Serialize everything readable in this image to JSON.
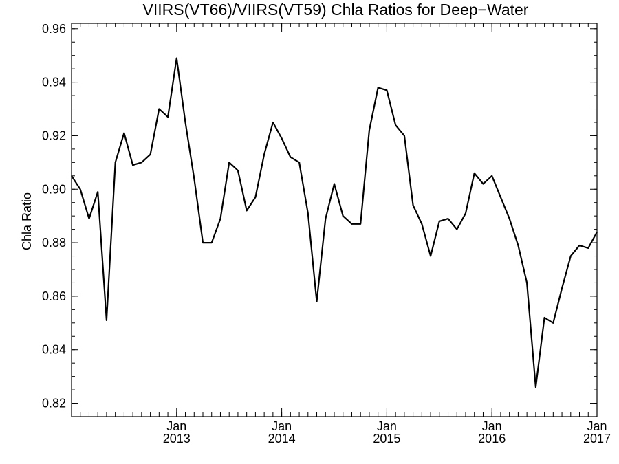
{
  "chart_data": {
    "type": "line",
    "title": "VIIRS(VT66)/VIIRS(VT59)  Chla Ratios for Deep−Water",
    "xlabel": "",
    "ylabel": "Chla Ratio",
    "xlim": [
      "2012-01",
      "2017-01"
    ],
    "ylim": [
      0.815,
      0.962
    ],
    "y_ticks": [
      0.82,
      0.84,
      0.86,
      0.88,
      0.9,
      0.92,
      0.94,
      0.96
    ],
    "y_tick_labels": [
      "0.82",
      "0.84",
      "0.86",
      "0.88",
      "0.90",
      "0.92",
      "0.94",
      "0.96"
    ],
    "x_ticks": [
      {
        "date": "2013-01",
        "month": "Jan",
        "year": "2013"
      },
      {
        "date": "2014-01",
        "month": "Jan",
        "year": "2014"
      },
      {
        "date": "2015-01",
        "month": "Jan",
        "year": "2015"
      },
      {
        "date": "2016-01",
        "month": "Jan",
        "year": "2016"
      },
      {
        "date": "2017-01",
        "month": "Jan",
        "year": "2017"
      }
    ],
    "grid": false,
    "series": [
      {
        "color": "#000000",
        "points": [
          [
            "2012-01",
            0.905
          ],
          [
            "2012-02",
            0.9
          ],
          [
            "2012-03",
            0.889
          ],
          [
            "2012-04",
            0.899
          ],
          [
            "2012-05",
            0.851
          ],
          [
            "2012-06",
            0.91
          ],
          [
            "2012-07",
            0.921
          ],
          [
            "2012-08",
            0.909
          ],
          [
            "2012-09",
            0.91
          ],
          [
            "2012-10",
            0.913
          ],
          [
            "2012-11",
            0.93
          ],
          [
            "2012-12",
            0.927
          ],
          [
            "2013-01",
            0.949
          ],
          [
            "2013-02",
            0.925
          ],
          [
            "2013-03",
            0.904
          ],
          [
            "2013-04",
            0.88
          ],
          [
            "2013-05",
            0.88
          ],
          [
            "2013-06",
            0.889
          ],
          [
            "2013-07",
            0.91
          ],
          [
            "2013-08",
            0.907
          ],
          [
            "2013-09",
            0.892
          ],
          [
            "2013-10",
            0.897
          ],
          [
            "2013-11",
            0.913
          ],
          [
            "2013-12",
            0.925
          ],
          [
            "2014-01",
            0.919
          ],
          [
            "2014-02",
            0.912
          ],
          [
            "2014-03",
            0.91
          ],
          [
            "2014-04",
            0.891
          ],
          [
            "2014-05",
            0.858
          ],
          [
            "2014-06",
            0.889
          ],
          [
            "2014-07",
            0.902
          ],
          [
            "2014-08",
            0.89
          ],
          [
            "2014-09",
            0.887
          ],
          [
            "2014-10",
            0.887
          ],
          [
            "2014-11",
            0.922
          ],
          [
            "2014-12",
            0.938
          ],
          [
            "2015-01",
            0.937
          ],
          [
            "2015-02",
            0.924
          ],
          [
            "2015-03",
            0.92
          ],
          [
            "2015-04",
            0.894
          ],
          [
            "2015-05",
            0.887
          ],
          [
            "2015-06",
            0.875
          ],
          [
            "2015-07",
            0.888
          ],
          [
            "2015-08",
            0.889
          ],
          [
            "2015-09",
            0.885
          ],
          [
            "2015-10",
            0.891
          ],
          [
            "2015-11",
            0.906
          ],
          [
            "2015-12",
            0.902
          ],
          [
            "2016-01",
            0.905
          ],
          [
            "2016-02",
            0.897
          ],
          [
            "2016-03",
            0.889
          ],
          [
            "2016-04",
            0.879
          ],
          [
            "2016-05",
            0.865
          ],
          [
            "2016-06",
            0.826
          ],
          [
            "2016-07",
            0.852
          ],
          [
            "2016-08",
            0.85
          ],
          [
            "2016-09",
            0.863
          ],
          [
            "2016-10",
            0.875
          ],
          [
            "2016-11",
            0.879
          ],
          [
            "2016-12",
            0.878
          ],
          [
            "2017-01",
            0.884
          ]
        ]
      }
    ]
  }
}
